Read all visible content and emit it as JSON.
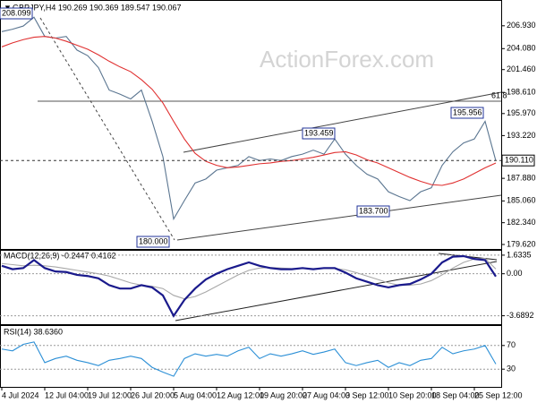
{
  "watermark": "ActionForex.com",
  "chart_data": [
    {
      "type": "line",
      "title": "GBPJPY,H4 190.269 190.369 189.547 190.067",
      "ylim": [
        179.06,
        210.04
      ],
      "yticks": [
        {
          "value": 206.93,
          "label": "206.930"
        },
        {
          "value": 204.08,
          "label": "204.080"
        },
        {
          "value": 201.46,
          "label": "201.460"
        },
        {
          "value": 198.61,
          "label": "198.610"
        },
        {
          "value": 195.97,
          "label": "195.970"
        },
        {
          "value": 193.22,
          "label": "193.220"
        },
        {
          "value": 187.88,
          "label": "187.880"
        },
        {
          "value": 185.06,
          "label": "185.060"
        },
        {
          "value": 182.34,
          "label": "182.340"
        },
        {
          "value": 179.62,
          "label": "179.620"
        }
      ],
      "last": {
        "value": 190.11,
        "label": "190.110"
      },
      "annotations": [
        "208.099",
        "180.000",
        "193.459",
        "195.956",
        "183.700",
        "61.8"
      ],
      "series": [
        {
          "color": "#5a7590",
          "values": [
            206.2,
            206.5,
            206.9,
            208.0,
            205.6,
            205.4,
            205.6,
            203.9,
            203.2,
            201.7,
            198.9,
            198.4,
            197.8,
            198.9,
            195.0,
            190.6,
            182.8,
            185.1,
            187.3,
            187.8,
            188.9,
            189.2,
            189.5,
            190.6,
            190.1,
            190.3,
            190.1,
            190.6,
            190.9,
            191.4,
            190.9,
            192.8,
            190.9,
            189.5,
            188.4,
            187.8,
            186.2,
            185.6,
            185.1,
            186.2,
            186.7,
            189.5,
            191.2,
            192.3,
            192.8,
            195.0,
            190.07
          ]
        },
        {
          "color": "#e03030",
          "values": [
            204.3,
            204.8,
            205.2,
            205.5,
            205.6,
            205.4,
            205.0,
            204.5,
            204.0,
            203.3,
            202.5,
            201.8,
            201.2,
            200.2,
            199.0,
            197.3,
            195.0,
            192.8,
            191.0,
            190.0,
            189.5,
            189.2,
            189.3,
            189.5,
            189.7,
            189.8,
            190.0,
            190.1,
            190.3,
            190.5,
            190.8,
            191.1,
            191.2,
            190.8,
            190.2,
            189.8,
            189.2,
            188.6,
            188.0,
            187.5,
            187.1,
            187.0,
            187.3,
            187.8,
            188.5,
            189.2,
            189.8
          ]
        }
      ]
    },
    {
      "type": "line",
      "title": "MACD(12,26,9) -0.2447 0.4162",
      "ylim": [
        -4.43,
        2.02
      ],
      "yticks": [
        1.6335,
        {
          "value": 0,
          "label": "0.00"
        },
        -3.6892
      ],
      "series": [
        {
          "color": "#a8a8a8",
          "values": [
            0.9,
            0.8,
            0.7,
            0.75,
            0.7,
            0.6,
            0.45,
            0.3,
            0.15,
            0.0,
            -0.2,
            -0.5,
            -0.8,
            -1.0,
            -1.1,
            -1.3,
            -1.9,
            -2.2,
            -2.0,
            -1.6,
            -1.1,
            -0.6,
            -0.1,
            0.3,
            0.5,
            0.55,
            0.5,
            0.45,
            0.45,
            0.45,
            0.45,
            0.45,
            0.35,
            0.1,
            -0.2,
            -0.5,
            -0.8,
            -1.0,
            -1.0,
            -0.9,
            -0.6,
            -0.1,
            0.5,
            1.0,
            1.3,
            1.35,
            0.42
          ]
        },
        {
          "color": "#1a1a8c",
          "values": [
            0.7,
            0.4,
            0.5,
            1.2,
            0.5,
            0.2,
            0.15,
            -0.1,
            -0.2,
            -0.4,
            -1.0,
            -1.3,
            -1.3,
            -1.0,
            -1.2,
            -1.9,
            -3.7,
            -2.3,
            -1.3,
            -0.5,
            0,
            0.4,
            0.7,
            1.0,
            0.7,
            0.5,
            0.4,
            0.4,
            0.5,
            0.4,
            0.5,
            0.5,
            0.1,
            -0.4,
            -0.7,
            -1.0,
            -1.2,
            -1.0,
            -0.9,
            -0.5,
            0,
            1.0,
            1.5,
            1.55,
            1.3,
            1.2,
            -0.24
          ]
        }
      ]
    },
    {
      "type": "line",
      "title": "RSI(14) 38.6360",
      "ylim": [
        0,
        100
      ],
      "yticks": [
        70,
        30
      ],
      "categories": [
        "4 Jul 2024",
        null,
        null,
        null,
        "12 Jul 04:00",
        null,
        null,
        null,
        "19 Jul 12:00",
        null,
        null,
        null,
        "26 Jul 20:00",
        null,
        null,
        null,
        "5 Aug 04:00",
        null,
        null,
        null,
        "12 Aug 12:00",
        null,
        null,
        null,
        "19 Aug 20:00",
        null,
        null,
        null,
        "27 Aug 04:00",
        null,
        null,
        null,
        "3 Sep 12:00",
        null,
        null,
        null,
        "10 Sep 20:00",
        null,
        null,
        null,
        "18 Sep 04:00",
        null,
        null,
        null,
        "25 Sep 12:00",
        null,
        null
      ],
      "series": [
        {
          "color": "#2b8fd6",
          "values": [
            64,
            61,
            72,
            76,
            41,
            48,
            52,
            45,
            41,
            36,
            45,
            48,
            52,
            48,
            33,
            25,
            18,
            48,
            56,
            52,
            55,
            52,
            61,
            67,
            48,
            56,
            52,
            56,
            61,
            55,
            59,
            64,
            41,
            36,
            41,
            45,
            33,
            41,
            36,
            45,
            48,
            67,
            56,
            61,
            64,
            70,
            38.64
          ]
        }
      ]
    }
  ]
}
